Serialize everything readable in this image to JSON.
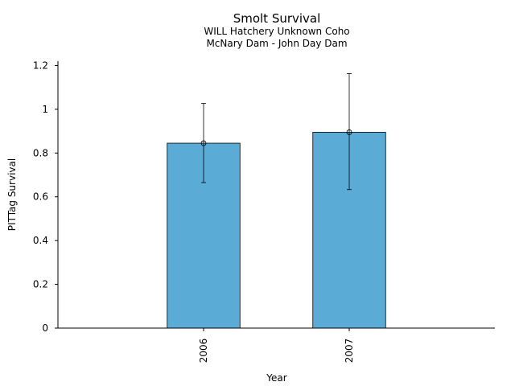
{
  "chart_data": {
    "type": "bar",
    "title": "Smolt Survival",
    "subtitle_lines": [
      "WILL Hatchery Unknown Coho",
      "McNary Dam - John Day Dam"
    ],
    "xlabel": "Year",
    "ylabel": "PITTag Survival",
    "ylim": [
      0,
      1.22
    ],
    "yticks": [
      0,
      0.2,
      0.4,
      0.6,
      0.8,
      1,
      1.2
    ],
    "ytick_labels": [
      "0",
      "0.2",
      "0.4",
      "0.6",
      "0.8",
      "1",
      "1.2"
    ],
    "categories": [
      "2006",
      "2007"
    ],
    "values": [
      0.845,
      0.895
    ],
    "error_low": [
      0.665,
      0.633
    ],
    "error_high": [
      1.027,
      1.163
    ],
    "bar_color": "#5aabd6",
    "grid": false,
    "legend": "none"
  }
}
